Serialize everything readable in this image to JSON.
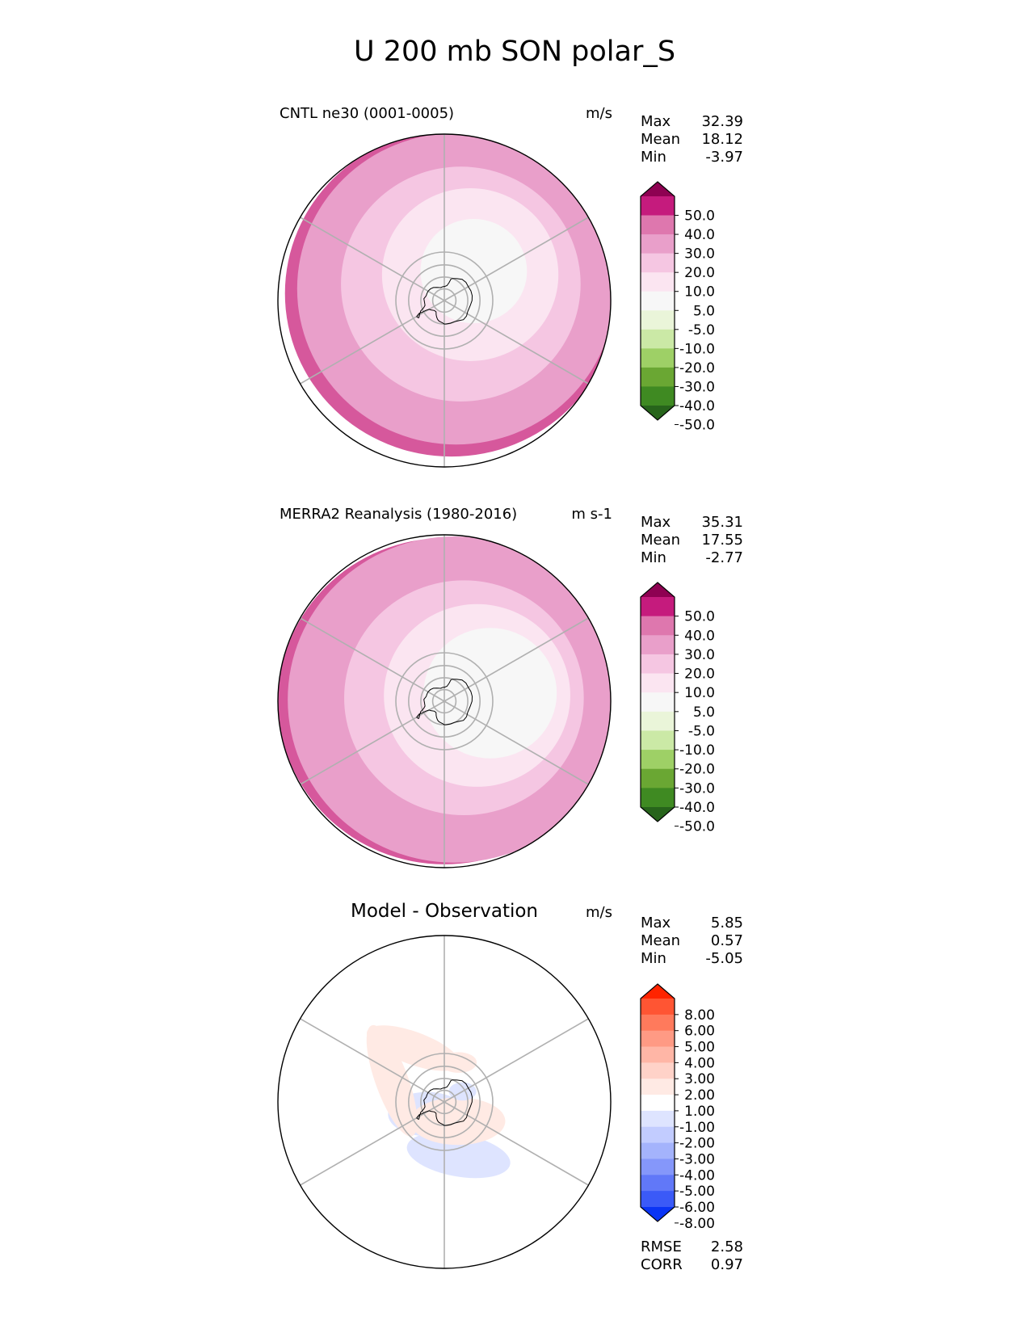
{
  "title": "U 200 mb SON polar_S",
  "chart_data": [
    {
      "type": "heatmap",
      "projection": "south-polar-stereographic",
      "title": "CNTL ne30 (0001-0005)",
      "units": "m/s",
      "stats": [
        {
          "label": "Max",
          "value": "32.39"
        },
        {
          "label": "Mean",
          "value": "18.12"
        },
        {
          "label": "Min",
          "value": "-3.97"
        }
      ],
      "colorbar": {
        "ticks": [
          "50.0",
          "40.0",
          "30.0",
          "20.0",
          "10.0",
          "5.0",
          "-5.0",
          "-10.0",
          "-20.0",
          "-30.0",
          "-40.0",
          "-50.0"
        ],
        "colors": [
          "#8e0152",
          "#c51b7d",
          "#de77ae",
          "#e99fca",
          "#f5c6e2",
          "#fbe5f1",
          "#f7f7f7",
          "#eaf5d9",
          "#cbe9a6",
          "#9ed066",
          "#6aa733",
          "#3f8a22",
          "#27641b"
        ]
      },
      "field": {
        "levels_outer_to_inner": [
          "#d6589c",
          "#e99fca",
          "#f5c6e2",
          "#fbe5f1",
          "#f7f7f7"
        ],
        "shift_lon_deg": 135,
        "shift_amount": [
          0.06,
          0.1,
          0.14,
          0.22,
          0.25
        ],
        "radius_fraction": [
          1.0,
          0.955,
          0.72,
          0.53,
          0.32
        ]
      }
    },
    {
      "type": "heatmap",
      "projection": "south-polar-stereographic",
      "title": "MERRA2 Reanalysis (1980-2016)",
      "units": "m s-1",
      "stats": [
        {
          "label": "Max",
          "value": "35.31"
        },
        {
          "label": "Mean",
          "value": "17.55"
        },
        {
          "label": "Min",
          "value": "-2.77"
        }
      ],
      "colorbar": {
        "ticks": [
          "50.0",
          "40.0",
          "30.0",
          "20.0",
          "10.0",
          "5.0",
          "-5.0",
          "-10.0",
          "-20.0",
          "-30.0",
          "-40.0",
          "-50.0"
        ],
        "colors": [
          "#8e0152",
          "#c51b7d",
          "#de77ae",
          "#e99fca",
          "#f5c6e2",
          "#fbe5f1",
          "#f7f7f7",
          "#eaf5d9",
          "#cbe9a6",
          "#9ed066",
          "#6aa733",
          "#3f8a22",
          "#27641b"
        ]
      },
      "field": {
        "levels_outer_to_inner": [
          "#d6589c",
          "#e99fca",
          "#f5c6e2",
          "#fbe5f1",
          "#f7f7f7"
        ],
        "shift_lon_deg": 100,
        "shift_amount": [
          0.0,
          0.06,
          0.12,
          0.2,
          0.28
        ],
        "radius_fraction": [
          1.0,
          1.0,
          0.72,
          0.56,
          0.4
        ]
      }
    },
    {
      "type": "heatmap",
      "projection": "south-polar-stereographic",
      "title": "Model - Observation",
      "units": "m/s",
      "stats": [
        {
          "label": "Max",
          "value": "5.85"
        },
        {
          "label": "Mean",
          "value": "0.57"
        },
        {
          "label": "Min",
          "value": "-5.05"
        }
      ],
      "metrics": [
        {
          "label": "RMSE",
          "value": "2.58"
        },
        {
          "label": "CORR",
          "value": "0.97"
        }
      ],
      "colorbar": {
        "ticks": [
          "8.00",
          "6.00",
          "5.00",
          "4.00",
          "3.00",
          "2.00",
          "1.00",
          "-1.00",
          "-2.00",
          "-3.00",
          "-4.00",
          "-5.00",
          "-6.00",
          "-8.00"
        ],
        "colors": [
          "#ff2400",
          "#ff5533",
          "#ff7a5c",
          "#ff9a84",
          "#ffb6a6",
          "#ffd2c8",
          "#ffeae4",
          "#ffffff",
          "#dee4ff",
          "#c2ccff",
          "#a4b3fc",
          "#8597fa",
          "#6178f8",
          "#3b5af7",
          "#0a34f5"
        ]
      },
      "anomalies": [
        {
          "lon_deg": 15,
          "lat_deg": -45,
          "a": 0.32,
          "b": 0.13,
          "rot_deg": 10,
          "sign": "negative",
          "strength": 3
        },
        {
          "lon_deg": -55,
          "lat_deg": -72,
          "a": 0.23,
          "b": 0.13,
          "rot_deg": 0,
          "sign": "negative",
          "strength": 4
        },
        {
          "lon_deg": 35,
          "lat_deg": -70,
          "a": 0.28,
          "b": 0.14,
          "rot_deg": 0,
          "sign": "positive",
          "strength": 4
        },
        {
          "lon_deg": 120,
          "lat_deg": -72,
          "a": 0.09,
          "b": 0.06,
          "rot_deg": 0,
          "sign": "negative",
          "strength": 2
        },
        {
          "lon_deg": -112,
          "lat_deg": -44,
          "a": 0.36,
          "b": 0.1,
          "rot_deg": 70,
          "sign": "positive",
          "strength": 3
        },
        {
          "lon_deg": -150,
          "lat_deg": -40,
          "a": 0.3,
          "b": 0.1,
          "rot_deg": 20,
          "sign": "positive",
          "strength": 3
        },
        {
          "lon_deg": 160,
          "lat_deg": -55,
          "a": 0.14,
          "b": 0.08,
          "rot_deg": 0,
          "sign": "positive",
          "strength": 1
        }
      ]
    }
  ]
}
